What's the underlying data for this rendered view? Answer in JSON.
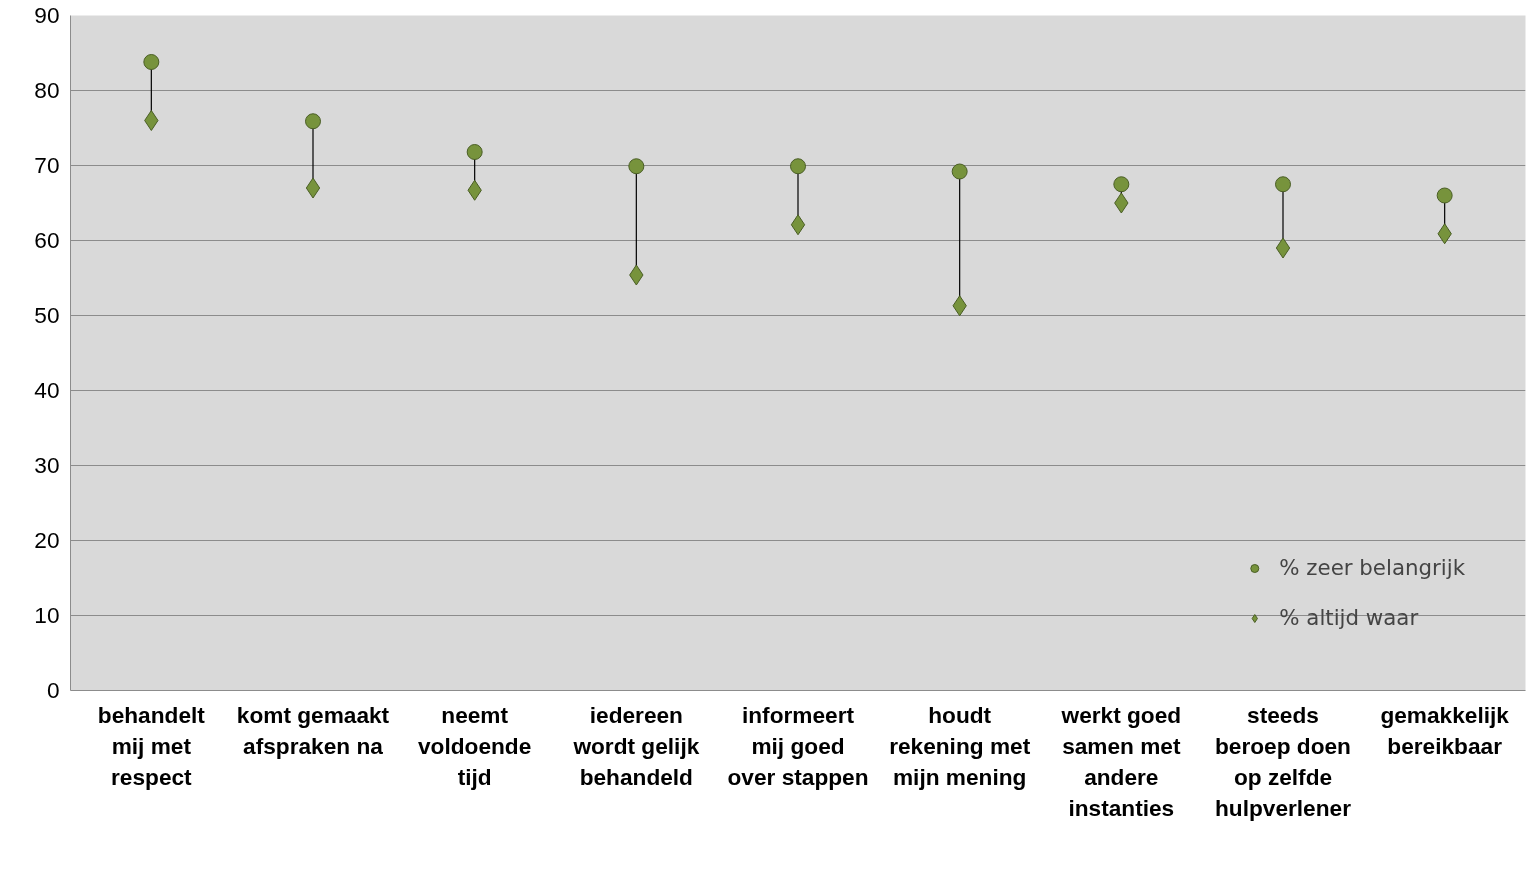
{
  "chart_data": {
    "type": "scatter",
    "categories": [
      "behandelt mij met respect",
      "komt gemaakt afspraken na",
      "neemt voldoende tijd",
      "iedereen wordt gelijk behandeld",
      "informeert mij goed over stappen",
      "houdt rekening met mijn mening",
      "werkt goed samen met andere instanties",
      "steeds beroep doen op zelfde hulpverlener",
      "gemakkelijk bereikbaar"
    ],
    "series": [
      {
        "name": "% zeer belangrijk",
        "color": "#77933c",
        "marker": "circle",
        "values": [
          83.8,
          75.9,
          71.8,
          69.9,
          69.9,
          69.2,
          67.5,
          67.5,
          66.0
        ]
      },
      {
        "name": "% altijd waar",
        "color": "#77933c",
        "marker": "diamond",
        "values": [
          76.0,
          67.0,
          66.7,
          55.4,
          62.1,
          51.3,
          65.0,
          59.0,
          60.9
        ]
      }
    ],
    "ylim": [
      0,
      90
    ],
    "yticks": [
      0,
      10,
      20,
      30,
      40,
      50,
      60,
      70,
      80,
      90
    ],
    "grid": "y",
    "legend": "bottom right"
  }
}
